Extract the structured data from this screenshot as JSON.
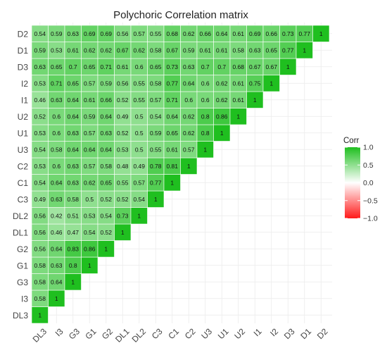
{
  "chart_data": {
    "type": "heatmap",
    "title": "Polychoric Correlation matrix",
    "x_labels": [
      "DL3",
      "I3",
      "G3",
      "G1",
      "G2",
      "DL1",
      "DL2",
      "C3",
      "C1",
      "C2",
      "U3",
      "U1",
      "U2",
      "I1",
      "I2",
      "D3",
      "D1",
      "D2"
    ],
    "y_labels_top_to_bottom": [
      "D2",
      "D1",
      "D3",
      "I2",
      "I1",
      "U2",
      "U1",
      "U3",
      "C2",
      "C1",
      "C3",
      "DL2",
      "DL1",
      "G2",
      "G1",
      "G3",
      "I3",
      "DL3"
    ],
    "lower_triangle": [
      [
        1
      ],
      [
        0.58,
        1
      ],
      [
        0.58,
        0.64,
        1
      ],
      [
        0.58,
        0.63,
        0.8,
        1
      ],
      [
        0.56,
        0.64,
        0.83,
        0.86,
        1
      ],
      [
        0.56,
        0.46,
        0.47,
        0.54,
        0.52,
        1
      ],
      [
        0.56,
        0.42,
        0.51,
        0.53,
        0.54,
        0.73,
        1
      ],
      [
        0.49,
        0.63,
        0.58,
        0.5,
        0.52,
        0.52,
        0.54,
        1
      ],
      [
        0.54,
        0.64,
        0.63,
        0.62,
        0.65,
        0.55,
        0.57,
        0.77,
        1
      ],
      [
        0.53,
        0.6,
        0.63,
        0.57,
        0.58,
        0.48,
        0.49,
        0.78,
        0.81,
        1
      ],
      [
        0.54,
        0.58,
        0.64,
        0.64,
        0.64,
        0.53,
        0.5,
        0.55,
        0.61,
        0.57,
        1
      ],
      [
        0.53,
        0.6,
        0.63,
        0.57,
        0.63,
        0.52,
        0.5,
        0.59,
        0.65,
        0.62,
        0.8,
        1
      ],
      [
        0.52,
        0.6,
        0.64,
        0.59,
        0.64,
        0.49,
        0.5,
        0.54,
        0.64,
        0.62,
        0.8,
        0.86,
        1
      ],
      [
        0.46,
        0.63,
        0.64,
        0.61,
        0.66,
        0.52,
        0.55,
        0.57,
        0.71,
        0.6,
        0.6,
        0.62,
        0.61,
        1
      ],
      [
        0.53,
        0.71,
        0.65,
        0.57,
        0.59,
        0.56,
        0.55,
        0.58,
        0.77,
        0.64,
        0.6,
        0.62,
        0.61,
        0.75,
        1
      ],
      [
        0.63,
        0.65,
        0.7,
        0.65,
        0.71,
        0.61,
        0.6,
        0.65,
        0.73,
        0.63,
        0.7,
        0.7,
        0.68,
        0.67,
        0.67,
        1
      ],
      [
        0.59,
        0.53,
        0.61,
        0.62,
        0.62,
        0.67,
        0.62,
        0.58,
        0.67,
        0.59,
        0.61,
        0.61,
        0.58,
        0.63,
        0.65,
        0.77,
        1
      ],
      [
        0.54,
        0.59,
        0.63,
        0.69,
        0.69,
        0.56,
        0.57,
        0.55,
        0.68,
        0.62,
        0.66,
        0.64,
        0.61,
        0.69,
        0.66,
        0.73,
        0.77,
        1
      ]
    ],
    "legend": {
      "title": "Corr",
      "ticks": [
        1.0,
        0.5,
        0.0,
        -0.5,
        -1.0
      ],
      "tick_labels": [
        "1.0",
        "0.5",
        "0.0",
        "−0.5",
        "−1.0"
      ],
      "placement": "right"
    },
    "color_scale": {
      "low": "#ff1a1a",
      "mid": "#ffffff",
      "high": "#1fbf1f",
      "range": [
        -1,
        1
      ]
    },
    "grid": true
  }
}
